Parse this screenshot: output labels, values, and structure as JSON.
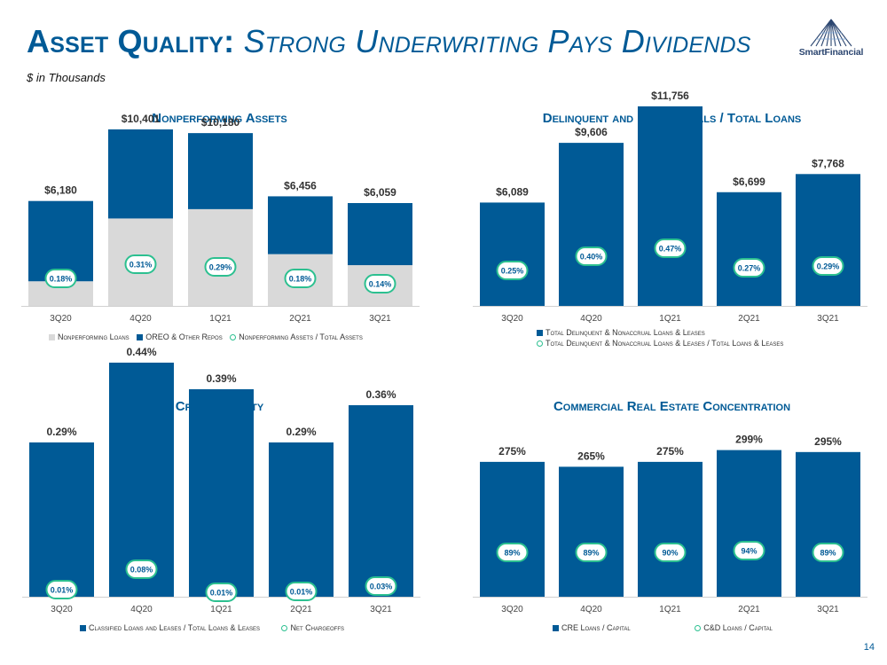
{
  "header": {
    "title_main": "Asset Quality:",
    "title_sub": "Strong Underwriting Pays Dividends",
    "subtitle": "$ in Thousands",
    "logo_text": "SmartFinancial"
  },
  "page_number": "14",
  "colors": {
    "accent": "#005a96",
    "secondary": "#d9d9d9",
    "ring": "#2cc090",
    "label": "#333333"
  },
  "chart_data": [
    {
      "id": "npa",
      "type": "bar",
      "title": "Nonperforming Assets",
      "categories": [
        "3Q20",
        "4Q20",
        "1Q21",
        "2Q21",
        "3Q21"
      ],
      "series": [
        {
          "name": "Nonperforming Loans",
          "values": [
            1450,
            5150,
            5700,
            3050,
            2400
          ]
        },
        {
          "name": "OREO & Other Repos",
          "values": [
            4730,
            5251,
            4480,
            3406,
            3659
          ]
        }
      ],
      "total_labels": [
        "$6,180",
        "$10,401",
        "$10,180",
        "$6,456",
        "$6,059"
      ],
      "ratio_series": {
        "name": "Nonperforming Assets / Total Assets",
        "labels": [
          "0.18%",
          "0.31%",
          "0.29%",
          "0.18%",
          "0.14%"
        ],
        "values": [
          0.18,
          0.31,
          0.29,
          0.18,
          0.14
        ]
      },
      "ylim": [
        0,
        14000
      ],
      "legend": [
        "Nonperforming Loans",
        "OREO & Other Repos",
        "Nonperforming Assets / Total Assets"
      ]
    },
    {
      "id": "delinquent",
      "type": "bar",
      "title": "Delinquent and Nonaccruals / Total Loans",
      "categories": [
        "3Q20",
        "4Q20",
        "1Q21",
        "2Q21",
        "3Q21"
      ],
      "series": [
        {
          "name": "Total Delinquent & Nonaccrual Loans & Leases",
          "values": [
            6089,
            9606,
            11756,
            6699,
            7768
          ]
        }
      ],
      "value_labels": [
        "$6,089",
        "$9,606",
        "$11,756",
        "$6,699",
        "$7,768"
      ],
      "ratio_series": {
        "name": "Total Delinquent & Nonaccrual Loans & Leases / Total Loans & Leases",
        "labels": [
          "0.25%",
          "0.40%",
          "0.47%",
          "0.27%",
          "0.29%"
        ],
        "values": [
          0.25,
          0.4,
          0.47,
          0.27,
          0.29
        ]
      },
      "ylim": [
        0,
        14000
      ],
      "legend": [
        "Total Delinquent & Nonaccrual Loans & Leases",
        "Total Delinquent & Nonaccrual Loans & Leases / Total Loans & Leases"
      ]
    },
    {
      "id": "credit",
      "type": "bar",
      "title": "Credit Quality",
      "categories": [
        "3Q20",
        "4Q20",
        "1Q21",
        "2Q21",
        "3Q21"
      ],
      "series": [
        {
          "name": "Classified Loans and Leases / Total Loans & Leases",
          "values": [
            0.29,
            0.44,
            0.39,
            0.29,
            0.36
          ]
        }
      ],
      "value_labels": [
        "0.29%",
        "0.44%",
        "0.39%",
        "0.29%",
        "0.36%"
      ],
      "ratio_series": {
        "name": "Net Chargeoffs",
        "labels": [
          "0.01%",
          "0.08%",
          "0.01%",
          "0.01%",
          "0.03%"
        ],
        "values": [
          0.01,
          0.08,
          0.01,
          0.01,
          0.03
        ]
      },
      "ylim": [
        0,
        0.5
      ],
      "legend": [
        "Classified Loans and Leases / Total Loans & Leases",
        "Net Chargeoffs"
      ]
    },
    {
      "id": "cre",
      "type": "bar",
      "title": "Commercial Real Estate Concentration",
      "categories": [
        "3Q20",
        "4Q20",
        "1Q21",
        "2Q21",
        "3Q21"
      ],
      "series": [
        {
          "name": "CRE Loans / Capital",
          "values": [
            275,
            265,
            275,
            299,
            295
          ]
        }
      ],
      "value_labels": [
        "275%",
        "265%",
        "275%",
        "299%",
        "295%"
      ],
      "ratio_series": {
        "name": "C&D Loans / Capital",
        "labels": [
          "89%",
          "89%",
          "90%",
          "94%",
          "89%"
        ],
        "values": [
          89,
          89,
          90,
          94,
          89
        ]
      },
      "ylim": [
        0,
        320
      ],
      "legend": [
        "CRE Loans / Capital",
        "C&D Loans / Capital"
      ]
    }
  ]
}
